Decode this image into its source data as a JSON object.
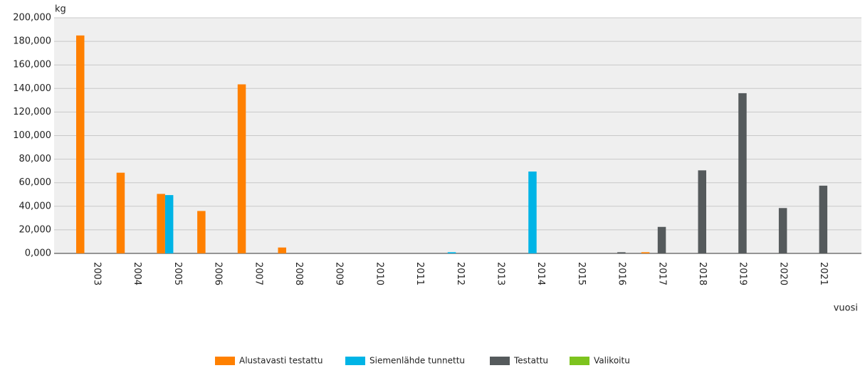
{
  "chart_data": {
    "type": "bar",
    "y_label": "kg",
    "x_label": "vuosi",
    "categories": [
      "2003",
      "2004",
      "2005",
      "2006",
      "2007",
      "2008",
      "2009",
      "2010",
      "2011",
      "2012",
      "2013",
      "2014",
      "2015",
      "2016",
      "2017",
      "2018",
      "2019",
      "2020",
      "2021"
    ],
    "series": [
      {
        "name": "Alustavasti testattu",
        "color": "#ff8000",
        "values": [
          185000,
          68500,
          50500,
          36000,
          143500,
          5000,
          0,
          0,
          0,
          0,
          0,
          0,
          0,
          0,
          1000,
          0,
          0,
          0,
          0
        ]
      },
      {
        "name": "Siemenlähde tunnettu",
        "color": "#00b4e6",
        "values": [
          0,
          0,
          49500,
          0,
          0,
          0,
          0,
          0,
          0,
          1000,
          0,
          69500,
          0,
          0,
          0,
          0,
          0,
          0,
          0
        ]
      },
      {
        "name": "Testattu",
        "color": "#555a5c",
        "values": [
          0,
          0,
          0,
          0,
          0,
          0,
          0,
          0,
          0,
          0,
          0,
          0,
          0,
          1000,
          22500,
          70500,
          136000,
          38500,
          57500
        ]
      },
      {
        "name": "Valikoitu",
        "color": "#7dc31e",
        "values": [
          0,
          0,
          0,
          0,
          0,
          0,
          0,
          0,
          0,
          0,
          0,
          0,
          0,
          0,
          0,
          0,
          0,
          0,
          0
        ]
      }
    ],
    "ylim": [
      0,
      200000
    ],
    "yticks": [
      {
        "value": 0,
        "label": "0,000"
      },
      {
        "value": 20000,
        "label": "20,000"
      },
      {
        "value": 40000,
        "label": "40,000"
      },
      {
        "value": 60000,
        "label": "60,000"
      },
      {
        "value": 80000,
        "label": "80,000"
      },
      {
        "value": 100000,
        "label": "100,000"
      },
      {
        "value": 120000,
        "label": "120,000"
      },
      {
        "value": 140000,
        "label": "140,000"
      },
      {
        "value": 160000,
        "label": "160,000"
      },
      {
        "value": 180000,
        "label": "180,000"
      },
      {
        "value": 200000,
        "label": "200,000"
      }
    ],
    "grid": true,
    "legend": "bottom"
  }
}
